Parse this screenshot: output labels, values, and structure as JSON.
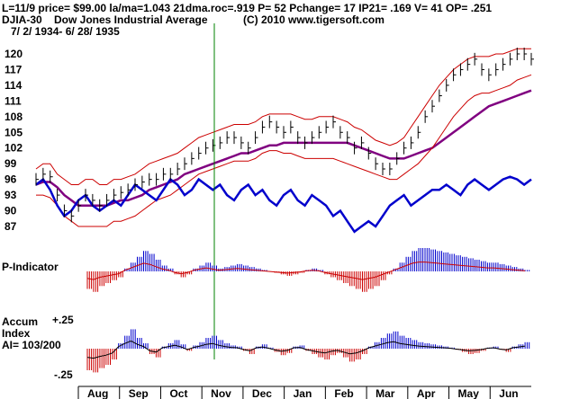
{
  "header": {
    "line1": "L=11/9  price= $99.00  la/ma=1.043 21dma.roc=.919 P=   52 Pchange=  17 IP21= .169 V= 41 OP= .251",
    "symbol": "DJIA-30",
    "name": "Dow Jones Industrial Average",
    "copyright": "(C) 2010 www.tigersoft.com",
    "date_range": "7/ 2/ 1934-  6/ 28/ 1935"
  },
  "panels": {
    "p_indicator_label": "P-Indicator",
    "accum_label_1": "Accum",
    "accum_label_2": "Index",
    "accum_label_3": "AI= 103/200",
    "accum_top_tick": "+.25",
    "accum_bottom_tick": "-.25"
  },
  "colors": {
    "price_bar": "#000000",
    "band": "#cc0000",
    "ma_purple": "#800080",
    "indicator_blue": "#0000cc",
    "pos_hist": "#0000cc",
    "neg_hist": "#cc0000",
    "marker_line": "#008000"
  },
  "chart_data": [
    {
      "type": "line",
      "title": "DJIA-30 Dow Jones Industrial Average",
      "ylim": [
        85,
        122
      ],
      "yticks": [
        "120",
        "117",
        "114",
        "111",
        "108",
        "105",
        "102",
        "99",
        "96",
        "93",
        "90",
        "87"
      ],
      "yticks_values": [
        120,
        117,
        114,
        111,
        108,
        105,
        102,
        99,
        96,
        93,
        90,
        87
      ],
      "months": [
        "Aug",
        "Sep",
        "Oct",
        "Nov",
        "Dec",
        "Jan",
        "Feb",
        "Mar",
        "Apr",
        "May",
        "Jun"
      ],
      "series": [
        {
          "name": "DJIA close",
          "values": [
            96,
            97,
            96.5,
            93,
            90,
            89,
            91,
            93,
            92,
            91,
            92,
            93,
            93.5,
            94,
            95,
            95.5,
            96,
            96,
            97,
            97,
            98,
            99,
            100,
            101,
            102,
            102.5,
            103,
            104,
            104,
            103,
            102,
            104,
            106,
            107,
            106,
            105,
            106,
            104,
            103,
            104,
            105,
            106,
            107,
            105,
            104,
            102,
            103,
            101,
            99,
            98,
            98,
            100,
            102,
            103,
            105,
            108,
            110,
            112,
            114,
            116,
            117,
            118,
            119,
            117,
            116,
            117,
            118,
            119,
            120,
            120,
            119
          ]
        },
        {
          "name": "21-day MA",
          "values": [
            95,
            95.5,
            95.5,
            94.5,
            93,
            92,
            91,
            91,
            91,
            91,
            91,
            91.5,
            92,
            92,
            92.5,
            93,
            94,
            94.5,
            95,
            95.5,
            96,
            97,
            97.5,
            98,
            98.5,
            99,
            99.5,
            100,
            100.5,
            101,
            101,
            101.5,
            102,
            102.5,
            102.5,
            103,
            103,
            103,
            103,
            103,
            103,
            103,
            103,
            103,
            103,
            102.5,
            102,
            101.5,
            101,
            100.5,
            100,
            100,
            100,
            100.5,
            101,
            101.5,
            102,
            103,
            104,
            105,
            106,
            107,
            108,
            109,
            110,
            110.5,
            111,
            111.5,
            112,
            112.5,
            113
          ]
        },
        {
          "name": "Upper band",
          "values": [
            98,
            99,
            99,
            97,
            96,
            95,
            95,
            96,
            96,
            95,
            95,
            96,
            96,
            96.5,
            97,
            98,
            99,
            99.5,
            100,
            100.5,
            101,
            102,
            103,
            104,
            104.5,
            105,
            105.5,
            106,
            106.5,
            106.5,
            106.5,
            107,
            108,
            108.5,
            108.5,
            108.5,
            108.5,
            108,
            107.5,
            107.5,
            108,
            108,
            108,
            107.5,
            107,
            106,
            105.5,
            104.5,
            103.5,
            103,
            102.5,
            103,
            104,
            106,
            108,
            110,
            112,
            114,
            115.5,
            117,
            118,
            119,
            119.5,
            119.5,
            119.5,
            120,
            120,
            120.5,
            121,
            121,
            121
          ]
        },
        {
          "name": "Lower band",
          "values": [
            93,
            93,
            92.5,
            91,
            89,
            88,
            87,
            87,
            87,
            87,
            87,
            88,
            88,
            88.5,
            89,
            90,
            91,
            92,
            92.5,
            93,
            94,
            95,
            96,
            97,
            97.5,
            98,
            98.5,
            99,
            99.5,
            99.5,
            99.5,
            100,
            101,
            101.5,
            101.5,
            101,
            101,
            100.5,
            100,
            100,
            100,
            100,
            100,
            99.5,
            99,
            98.5,
            98,
            97.5,
            97,
            96.5,
            96,
            96,
            97,
            98,
            99,
            100.5,
            102,
            104,
            106,
            108,
            109.5,
            111,
            112,
            112.5,
            112.5,
            113,
            113.5,
            114,
            115,
            115.5,
            116
          ]
        },
        {
          "name": "Blue indicator",
          "values": [
            95,
            96,
            94,
            91,
            89,
            90,
            92,
            93,
            91,
            90,
            91,
            92,
            91,
            93,
            95,
            94,
            93,
            92,
            94,
            96,
            95,
            93,
            94,
            96,
            95,
            94,
            95,
            93,
            92,
            94,
            95,
            93,
            94,
            92,
            91,
            93,
            94,
            92,
            91,
            93,
            92,
            91,
            89,
            90,
            88,
            86,
            87,
            88,
            87,
            89,
            91,
            92,
            93,
            91,
            92,
            93,
            94,
            94,
            95,
            94,
            93,
            95,
            96,
            95,
            94,
            95,
            96,
            96.5,
            96,
            95,
            96
          ]
        }
      ]
    },
    {
      "type": "bar",
      "title": "P-Indicator",
      "values": [
        -0.6,
        -0.7,
        -0.5,
        -0.4,
        -0.3,
        -0.2,
        0.1,
        0.3,
        0.5,
        0.7,
        0.6,
        0.4,
        0.2,
        0.1,
        -0.1,
        -0.2,
        -0.1,
        0.1,
        0.2,
        0.3,
        0.2,
        0.1,
        0.15,
        0.2,
        0.25,
        0.2,
        0.15,
        0.1,
        0.05,
        0.0,
        -0.05,
        -0.1,
        -0.15,
        -0.1,
        -0.05,
        0.05,
        0.1,
        0.05,
        -0.1,
        -0.2,
        -0.3,
        -0.4,
        -0.5,
        -0.6,
        -0.7,
        -0.6,
        -0.5,
        -0.3,
        -0.1,
        0.1,
        0.3,
        0.5,
        0.7,
        0.8,
        0.8,
        0.75,
        0.7,
        0.65,
        0.6,
        0.55,
        0.5,
        0.45,
        0.4,
        0.35,
        0.3,
        0.3,
        0.25,
        0.2,
        0.15,
        0.1,
        0.05
      ]
    },
    {
      "type": "bar",
      "title": "Accum Index",
      "ylim": [
        -0.25,
        0.25
      ],
      "values": [
        -0.2,
        -0.22,
        -0.18,
        -0.15,
        -0.1,
        0.05,
        0.12,
        0.18,
        0.1,
        0.05,
        -0.05,
        -0.08,
        0.02,
        0.05,
        0.08,
        0.04,
        -0.02,
        0.03,
        0.06,
        0.1,
        0.12,
        0.08,
        0.05,
        0.03,
        0.02,
        -0.02,
        -0.05,
        0.02,
        0.04,
        0.01,
        -0.03,
        -0.06,
        -0.04,
        0.02,
        0.03,
        -0.02,
        -0.05,
        -0.08,
        -0.1,
        -0.06,
        -0.04,
        -0.08,
        -0.12,
        -0.1,
        -0.05,
        0.02,
        0.06,
        0.1,
        0.14,
        0.16,
        0.12,
        0.1,
        0.08,
        0.06,
        0.05,
        0.04,
        0.03,
        0.02,
        0.01,
        -0.01,
        -0.03,
        -0.05,
        -0.04,
        -0.02,
        0.01,
        0.02,
        -0.01,
        -0.03,
        0.02,
        0.04,
        0.06
      ]
    }
  ]
}
